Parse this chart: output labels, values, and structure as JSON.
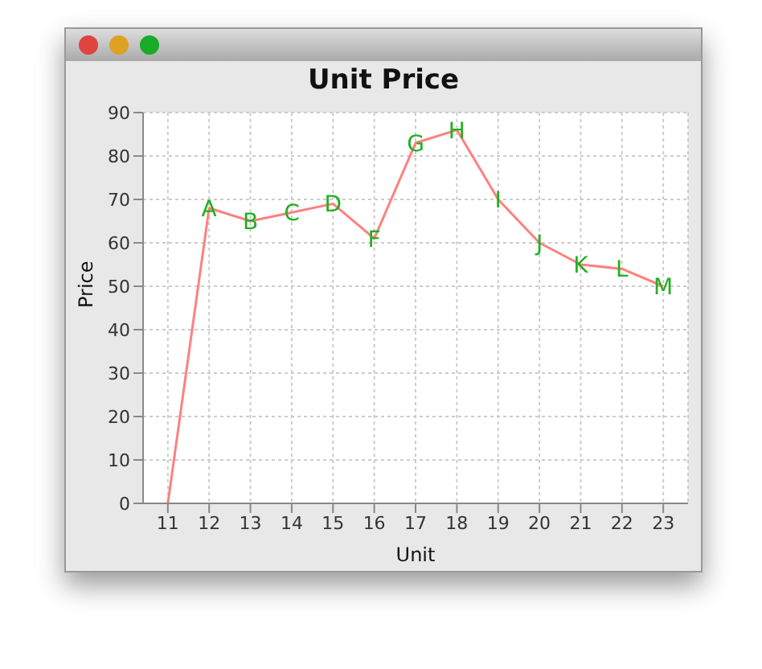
{
  "chart_data": {
    "type": "line",
    "title": "Unit Price",
    "xlabel": "Unit",
    "ylabel": "Price",
    "x": [
      11,
      12,
      13,
      14,
      15,
      16,
      17,
      18,
      19,
      20,
      21,
      22,
      23
    ],
    "series": [
      {
        "color": "#ff8080",
        "values": [
          0,
          68,
          65,
          67,
          69,
          61,
          83,
          86,
          70,
          60,
          55,
          54,
          50
        ]
      }
    ],
    "annotations": [
      {
        "text": "A",
        "x": 12,
        "y": 68
      },
      {
        "text": "B",
        "x": 13,
        "y": 65
      },
      {
        "text": "C",
        "x": 14,
        "y": 67
      },
      {
        "text": "D",
        "x": 15,
        "y": 69
      },
      {
        "text": "F",
        "x": 16,
        "y": 61
      },
      {
        "text": "G",
        "x": 17,
        "y": 83
      },
      {
        "text": "H",
        "x": 18,
        "y": 86
      },
      {
        "text": "I",
        "x": 19,
        "y": 70
      },
      {
        "text": "J",
        "x": 20,
        "y": 60
      },
      {
        "text": "K",
        "x": 21,
        "y": 55
      },
      {
        "text": "L",
        "x": 22,
        "y": 54
      },
      {
        "text": "M",
        "x": 23,
        "y": 50
      }
    ],
    "xlim": [
      10.4,
      23.6
    ],
    "xticks": [
      11,
      12,
      13,
      14,
      15,
      16,
      17,
      18,
      19,
      20,
      21,
      22,
      23
    ],
    "ylim": [
      0,
      90
    ],
    "yticks": [
      0,
      10,
      20,
      30,
      40,
      50,
      60,
      70,
      80,
      90
    ],
    "grid": true,
    "legend": false,
    "marker": "none",
    "line_style": "solid"
  }
}
